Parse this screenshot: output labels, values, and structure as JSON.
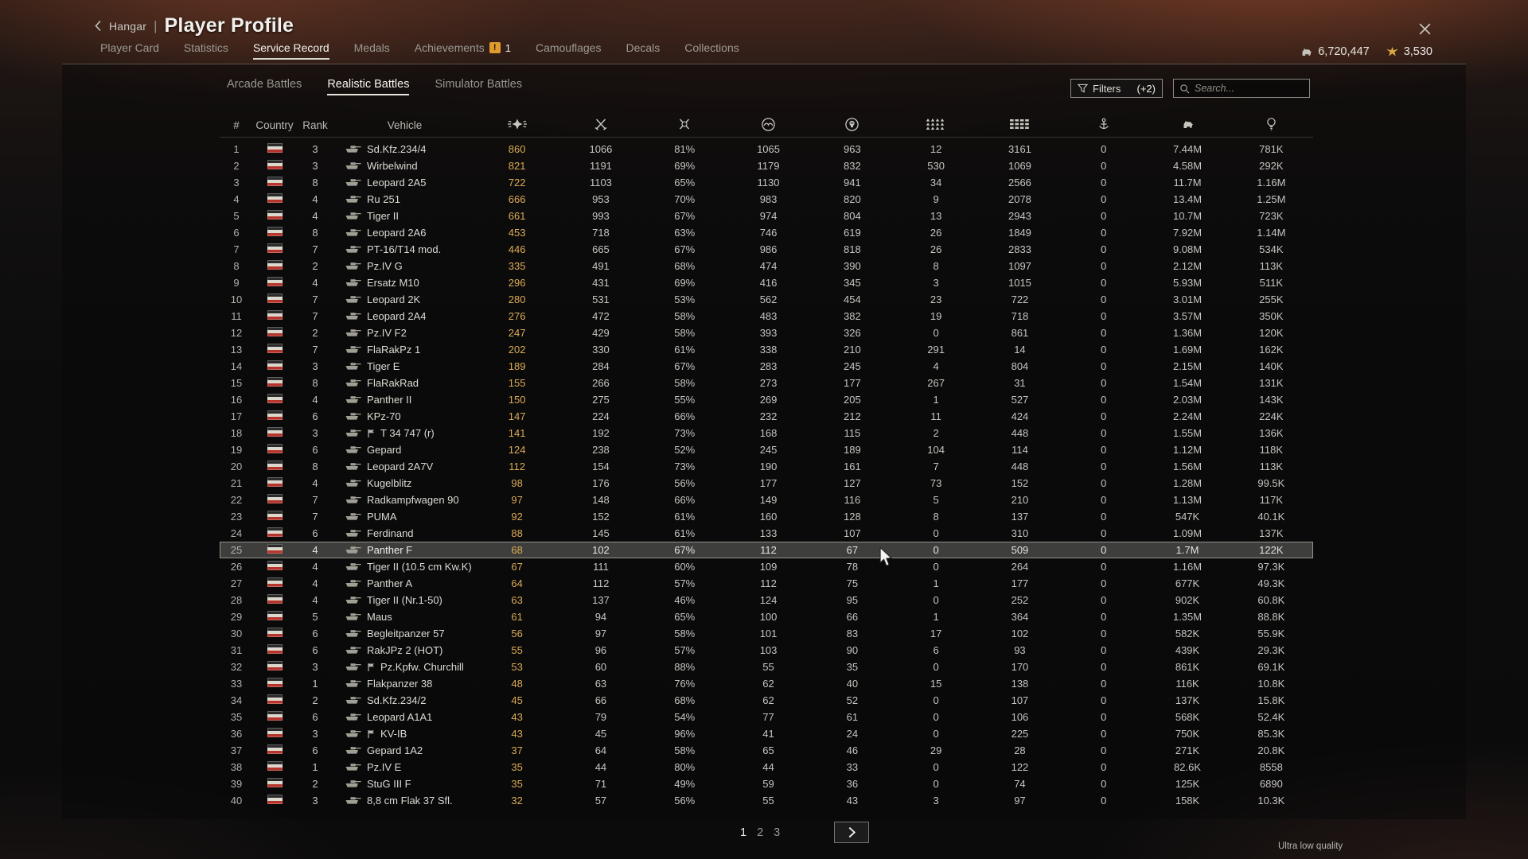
{
  "header": {
    "back_label": "Hangar",
    "title": "Player Profile"
  },
  "currencies": {
    "silver_lions": "6,720,447",
    "golden_eagles": "3,530"
  },
  "tabs": {
    "items": [
      {
        "label": "Player Card"
      },
      {
        "label": "Statistics"
      },
      {
        "label": "Service Record",
        "active": true
      },
      {
        "label": "Medals"
      },
      {
        "label": "Achievements",
        "badge": "!",
        "badge_count": "1"
      },
      {
        "label": "Camouflages"
      },
      {
        "label": "Decals"
      },
      {
        "label": "Collections"
      }
    ]
  },
  "subtabs": {
    "items": [
      {
        "label": "Arcade Battles"
      },
      {
        "label": "Realistic Battles",
        "active": true
      },
      {
        "label": "Simulator Battles"
      }
    ]
  },
  "toolbar": {
    "filters_label": "Filters",
    "filters_extra": "(+2)",
    "search_placeholder": "Search..."
  },
  "table": {
    "text_columns": [
      "#",
      "Country",
      "Rank",
      "Vehicle"
    ],
    "icon_columns": [
      "winged-star-icon",
      "crossed-swords-icon",
      "duel-icon",
      "wings-roundel-icon",
      "skull-roundel-icon",
      "aircraft-formation-icon",
      "vehicle-formation-icon",
      "anchor-icon",
      "silver-lion-icon",
      "research-icon"
    ],
    "country": "Germany",
    "rows": [
      {
        "n": "1",
        "rank": "3",
        "name": "Sd.Kfz.234/4",
        "v": [
          "860",
          "1066",
          "81%",
          "1065",
          "963",
          "12",
          "3161",
          "0",
          "7.44M",
          "781K"
        ]
      },
      {
        "n": "2",
        "rank": "3",
        "name": "Wirbelwind",
        "v": [
          "821",
          "1191",
          "69%",
          "1179",
          "832",
          "530",
          "1069",
          "0",
          "4.58M",
          "292K"
        ]
      },
      {
        "n": "3",
        "rank": "8",
        "name": "Leopard 2A5",
        "v": [
          "722",
          "1103",
          "65%",
          "1130",
          "941",
          "34",
          "2566",
          "0",
          "11.7M",
          "1.16M"
        ]
      },
      {
        "n": "4",
        "rank": "4",
        "name": "Ru 251",
        "v": [
          "666",
          "953",
          "70%",
          "983",
          "820",
          "9",
          "2078",
          "0",
          "13.4M",
          "1.25M"
        ]
      },
      {
        "n": "5",
        "rank": "4",
        "name": "Tiger II",
        "v": [
          "661",
          "993",
          "67%",
          "974",
          "804",
          "13",
          "2943",
          "0",
          "10.7M",
          "723K"
        ]
      },
      {
        "n": "6",
        "rank": "8",
        "name": "Leopard 2A6",
        "v": [
          "453",
          "718",
          "63%",
          "746",
          "619",
          "26",
          "1849",
          "0",
          "7.92M",
          "1.14M"
        ]
      },
      {
        "n": "7",
        "rank": "7",
        "name": "PT-16/T14 mod.",
        "v": [
          "446",
          "665",
          "67%",
          "986",
          "818",
          "26",
          "2833",
          "0",
          "9.08M",
          "534K"
        ]
      },
      {
        "n": "8",
        "rank": "2",
        "name": "Pz.IV G",
        "v": [
          "335",
          "491",
          "68%",
          "474",
          "390",
          "8",
          "1097",
          "0",
          "2.12M",
          "113K"
        ]
      },
      {
        "n": "9",
        "rank": "4",
        "name": "Ersatz M10",
        "v": [
          "296",
          "431",
          "69%",
          "416",
          "345",
          "3",
          "1015",
          "0",
          "5.93M",
          "511K"
        ]
      },
      {
        "n": "10",
        "rank": "7",
        "name": "Leopard 2K",
        "v": [
          "280",
          "531",
          "53%",
          "562",
          "454",
          "23",
          "722",
          "0",
          "3.01M",
          "255K"
        ]
      },
      {
        "n": "11",
        "rank": "7",
        "name": "Leopard 2A4",
        "v": [
          "276",
          "472",
          "58%",
          "483",
          "382",
          "19",
          "718",
          "0",
          "3.57M",
          "350K"
        ]
      },
      {
        "n": "12",
        "rank": "2",
        "name": "Pz.IV F2",
        "v": [
          "247",
          "429",
          "58%",
          "393",
          "326",
          "0",
          "861",
          "0",
          "1.36M",
          "120K"
        ]
      },
      {
        "n": "13",
        "rank": "7",
        "name": "FlaRakPz 1",
        "v": [
          "202",
          "330",
          "61%",
          "338",
          "210",
          "291",
          "14",
          "0",
          "1.69M",
          "162K"
        ]
      },
      {
        "n": "14",
        "rank": "3",
        "name": "Tiger E",
        "v": [
          "189",
          "284",
          "67%",
          "283",
          "245",
          "4",
          "804",
          "0",
          "2.15M",
          "140K"
        ]
      },
      {
        "n": "15",
        "rank": "8",
        "name": "FlaRakRad",
        "v": [
          "155",
          "266",
          "58%",
          "273",
          "177",
          "267",
          "31",
          "0",
          "1.54M",
          "131K"
        ]
      },
      {
        "n": "16",
        "rank": "4",
        "name": "Panther II",
        "v": [
          "150",
          "275",
          "55%",
          "269",
          "205",
          "1",
          "527",
          "0",
          "2.03M",
          "143K"
        ]
      },
      {
        "n": "17",
        "rank": "6",
        "name": "KPz-70",
        "v": [
          "147",
          "224",
          "66%",
          "232",
          "212",
          "11",
          "424",
          "0",
          "2.24M",
          "224K"
        ]
      },
      {
        "n": "18",
        "rank": "3",
        "name": "T 34 747 (r)",
        "captured": true,
        "v": [
          "141",
          "192",
          "73%",
          "168",
          "115",
          "2",
          "448",
          "0",
          "1.55M",
          "136K"
        ]
      },
      {
        "n": "19",
        "rank": "6",
        "name": "Gepard",
        "v": [
          "124",
          "238",
          "52%",
          "245",
          "189",
          "104",
          "114",
          "0",
          "1.12M",
          "118K"
        ]
      },
      {
        "n": "20",
        "rank": "8",
        "name": "Leopard 2A7V",
        "v": [
          "112",
          "154",
          "73%",
          "190",
          "161",
          "7",
          "448",
          "0",
          "1.56M",
          "113K"
        ]
      },
      {
        "n": "21",
        "rank": "4",
        "name": "Kugelblitz",
        "v": [
          "98",
          "176",
          "56%",
          "177",
          "127",
          "73",
          "152",
          "0",
          "1.28M",
          "99.5K"
        ]
      },
      {
        "n": "22",
        "rank": "7",
        "name": "Radkampfwagen 90",
        "v": [
          "97",
          "148",
          "66%",
          "149",
          "116",
          "5",
          "210",
          "0",
          "1.13M",
          "117K"
        ]
      },
      {
        "n": "23",
        "rank": "7",
        "name": "PUMA",
        "v": [
          "92",
          "152",
          "61%",
          "160",
          "128",
          "8",
          "137",
          "0",
          "547K",
          "40.1K"
        ]
      },
      {
        "n": "24",
        "rank": "6",
        "name": "Ferdinand",
        "v": [
          "88",
          "145",
          "61%",
          "133",
          "107",
          "0",
          "310",
          "0",
          "1.09M",
          "137K"
        ]
      },
      {
        "n": "25",
        "rank": "4",
        "name": "Panther F",
        "hl": true,
        "v": [
          "68",
          "102",
          "67%",
          "112",
          "67",
          "0",
          "509",
          "0",
          "1.7M",
          "122K"
        ]
      },
      {
        "n": "26",
        "rank": "4",
        "name": "Tiger II (10.5 cm Kw.K)",
        "v": [
          "67",
          "111",
          "60%",
          "109",
          "78",
          "0",
          "264",
          "0",
          "1.16M",
          "97.3K"
        ]
      },
      {
        "n": "27",
        "rank": "4",
        "name": "Panther A",
        "v": [
          "64",
          "112",
          "57%",
          "112",
          "75",
          "1",
          "177",
          "0",
          "677K",
          "49.3K"
        ]
      },
      {
        "n": "28",
        "rank": "4",
        "name": "Tiger II (Nr.1-50)",
        "v": [
          "63",
          "137",
          "46%",
          "124",
          "95",
          "0",
          "252",
          "0",
          "902K",
          "60.8K"
        ]
      },
      {
        "n": "29",
        "rank": "5",
        "name": "Maus",
        "v": [
          "61",
          "94",
          "65%",
          "100",
          "66",
          "1",
          "364",
          "0",
          "1.35M",
          "88.8K"
        ]
      },
      {
        "n": "30",
        "rank": "6",
        "name": "Begleitpanzer 57",
        "v": [
          "56",
          "97",
          "58%",
          "101",
          "83",
          "17",
          "102",
          "0",
          "582K",
          "55.9K"
        ]
      },
      {
        "n": "31",
        "rank": "6",
        "name": "RakJPz 2 (HOT)",
        "v": [
          "55",
          "96",
          "57%",
          "103",
          "90",
          "6",
          "93",
          "0",
          "439K",
          "29.3K"
        ]
      },
      {
        "n": "32",
        "rank": "3",
        "name": "Pz.Kpfw. Churchill",
        "captured": true,
        "v": [
          "53",
          "60",
          "88%",
          "55",
          "35",
          "0",
          "170",
          "0",
          "861K",
          "69.1K"
        ]
      },
      {
        "n": "33",
        "rank": "1",
        "name": "Flakpanzer 38",
        "v": [
          "48",
          "63",
          "76%",
          "62",
          "40",
          "15",
          "138",
          "0",
          "116K",
          "10.8K"
        ]
      },
      {
        "n": "34",
        "rank": "2",
        "name": "Sd.Kfz.234/2",
        "v": [
          "45",
          "66",
          "68%",
          "62",
          "52",
          "0",
          "107",
          "0",
          "137K",
          "15.8K"
        ]
      },
      {
        "n": "35",
        "rank": "6",
        "name": "Leopard A1A1",
        "v": [
          "43",
          "79",
          "54%",
          "77",
          "61",
          "0",
          "106",
          "0",
          "568K",
          "52.4K"
        ]
      },
      {
        "n": "36",
        "rank": "3",
        "name": "KV-IB",
        "captured": true,
        "v": [
          "43",
          "45",
          "96%",
          "41",
          "24",
          "0",
          "225",
          "0",
          "750K",
          "85.3K"
        ]
      },
      {
        "n": "37",
        "rank": "6",
        "name": "Gepard 1A2",
        "v": [
          "37",
          "64",
          "58%",
          "65",
          "46",
          "29",
          "28",
          "0",
          "271K",
          "20.8K"
        ]
      },
      {
        "n": "38",
        "rank": "1",
        "name": "Pz.IV E",
        "v": [
          "35",
          "44",
          "80%",
          "44",
          "33",
          "0",
          "122",
          "0",
          "82.6K",
          "8558"
        ]
      },
      {
        "n": "39",
        "rank": "2",
        "name": "StuG III F",
        "v": [
          "35",
          "71",
          "49%",
          "59",
          "36",
          "0",
          "74",
          "0",
          "125K",
          "6890"
        ]
      },
      {
        "n": "40",
        "rank": "3",
        "name": "8,8 cm Flak 37 Sfl.",
        "v": [
          "32",
          "57",
          "56%",
          "55",
          "43",
          "3",
          "97",
          "0",
          "158K",
          "10.3K"
        ]
      }
    ]
  },
  "pagination": {
    "pages": [
      "1",
      "2",
      "3"
    ],
    "active": "1"
  },
  "status": {
    "quality_label": "Ultra low quality"
  }
}
